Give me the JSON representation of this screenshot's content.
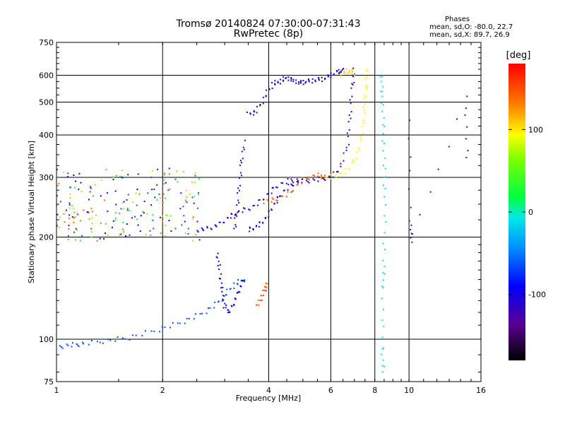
{
  "chart_data": {
    "type": "scatter",
    "title": "Tromsø 20140824 07:30:00-07:31:43",
    "subtitle": "RwPretec (8p)",
    "stats_header": "Phases",
    "stats_line1": "mean, sd,O: -80.0, 22.7",
    "stats_line2": "mean, sd,X: 89.7, 26.9",
    "xlabel": "Frequency [MHz]",
    "ylabel": "Stationary phase Virtual Height [km]",
    "xscale": "log",
    "yscale": "log",
    "xlim": [
      1,
      16
    ],
    "ylim": [
      75,
      750
    ],
    "xticks": [
      "1",
      "2",
      "4",
      "6",
      "8",
      "10",
      "16"
    ],
    "xtick_values": [
      1,
      2,
      4,
      6,
      8,
      10,
      16
    ],
    "yticks": [
      "75",
      "100",
      "200",
      "300",
      "400",
      "500",
      "600",
      "750"
    ],
    "ytick_values": [
      75,
      100,
      200,
      300,
      400,
      500,
      600,
      750
    ],
    "grid": true,
    "colorbar": {
      "label": "[deg]",
      "range": [
        -180,
        180
      ],
      "ticks": [
        "100",
        "0",
        "-100"
      ],
      "tick_values": [
        100,
        0,
        -100
      ]
    },
    "traces": [
      {
        "name": "",
        "phase": -105,
        "points": [
          [
            3.5,
            460
          ],
          [
            3.7,
            470
          ],
          [
            3.9,
            520
          ],
          [
            4.1,
            565
          ],
          [
            4.3,
            575
          ],
          [
            4.5,
            590
          ],
          [
            4.7,
            580
          ],
          [
            4.9,
            570
          ],
          [
            5.1,
            575
          ],
          [
            5.4,
            580
          ],
          [
            5.7,
            585
          ],
          [
            6.0,
            600
          ],
          [
            6.3,
            615
          ],
          [
            6.5,
            620
          ]
        ]
      },
      {
        "name": "",
        "phase": -110,
        "points": [
          [
            2.5,
            210
          ],
          [
            2.7,
            212
          ],
          [
            2.9,
            218
          ],
          [
            3.1,
            230
          ],
          [
            3.3,
            238
          ],
          [
            3.6,
            245
          ],
          [
            3.9,
            262
          ],
          [
            4.2,
            282
          ],
          [
            4.6,
            295
          ],
          [
            5.0,
            292
          ],
          [
            5.5,
            295
          ],
          [
            6.0,
            300
          ],
          [
            6.4,
            320
          ],
          [
            6.7,
            380
          ],
          [
            6.8,
            460
          ],
          [
            6.9,
            560
          ],
          [
            7.0,
            620
          ]
        ]
      },
      {
        "name": "",
        "phase": -110,
        "points": [
          [
            3.2,
            210
          ],
          [
            3.25,
            240
          ],
          [
            3.3,
            280
          ],
          [
            3.35,
            330
          ],
          [
            3.4,
            380
          ]
        ]
      },
      {
        "name": "",
        "phase": -100,
        "points": [
          [
            3.5,
            210
          ],
          [
            3.7,
            215
          ],
          [
            3.9,
            225
          ],
          [
            4.1,
            245
          ],
          [
            4.3,
            265
          ],
          [
            4.6,
            285
          ],
          [
            5.0,
            292
          ]
        ]
      },
      {
        "name": "",
        "phase": 95,
        "points": [
          [
            5.8,
            300
          ],
          [
            6.3,
            305
          ],
          [
            6.8,
            320
          ],
          [
            7.2,
            360
          ],
          [
            7.4,
            420
          ],
          [
            7.5,
            500
          ],
          [
            7.55,
            560
          ],
          [
            7.6,
            620
          ]
        ]
      },
      {
        "name": "",
        "phase": 145,
        "points": [
          [
            3.9,
            255
          ],
          [
            4.2,
            258
          ],
          [
            4.6,
            270
          ],
          [
            5.0,
            295
          ],
          [
            5.5,
            305
          ],
          [
            5.8,
            300
          ]
        ]
      },
      {
        "name": "",
        "phase": 110,
        "points": [
          [
            6.4,
            600
          ],
          [
            6.7,
            620
          ],
          [
            7.0,
            610
          ]
        ]
      },
      {
        "name": "",
        "phase": -65,
        "points": [
          [
            1.0,
            95
          ],
          [
            1.1,
            96
          ],
          [
            1.2,
            97
          ],
          [
            1.4,
            99
          ],
          [
            1.6,
            101
          ],
          [
            1.9,
            106
          ],
          [
            2.2,
            111
          ],
          [
            2.5,
            117
          ],
          [
            2.8,
            125
          ],
          [
            3.0,
            135
          ],
          [
            3.2,
            145
          ],
          [
            3.4,
            150
          ]
        ]
      },
      {
        "name": "",
        "phase": -95,
        "points": [
          [
            2.85,
            180
          ],
          [
            2.9,
            160
          ],
          [
            2.95,
            140
          ],
          [
            3.0,
            125
          ],
          [
            3.1,
            120
          ],
          [
            3.2,
            130
          ],
          [
            3.3,
            140
          ],
          [
            3.4,
            150
          ]
        ]
      },
      {
        "name": "",
        "phase": 145,
        "points": [
          [
            3.7,
            125
          ],
          [
            3.8,
            132
          ],
          [
            3.9,
            140
          ],
          [
            3.95,
            145
          ]
        ]
      },
      {
        "name": "",
        "phase": -10,
        "points": [
          [
            8.35,
            600
          ],
          [
            8.4,
            520
          ],
          [
            8.45,
            420
          ],
          [
            8.5,
            330
          ],
          [
            8.55,
            250
          ],
          [
            8.5,
            170
          ],
          [
            8.45,
            140
          ],
          [
            8.4,
            95
          ],
          [
            8.45,
            80
          ]
        ]
      },
      {
        "name": "",
        "phase": -120,
        "points": [
          [
            10.0,
            440
          ],
          [
            10.1,
            220
          ],
          [
            10.2,
            195
          ],
          [
            14.5,
            520
          ],
          [
            14.6,
            340
          ]
        ]
      }
    ]
  }
}
